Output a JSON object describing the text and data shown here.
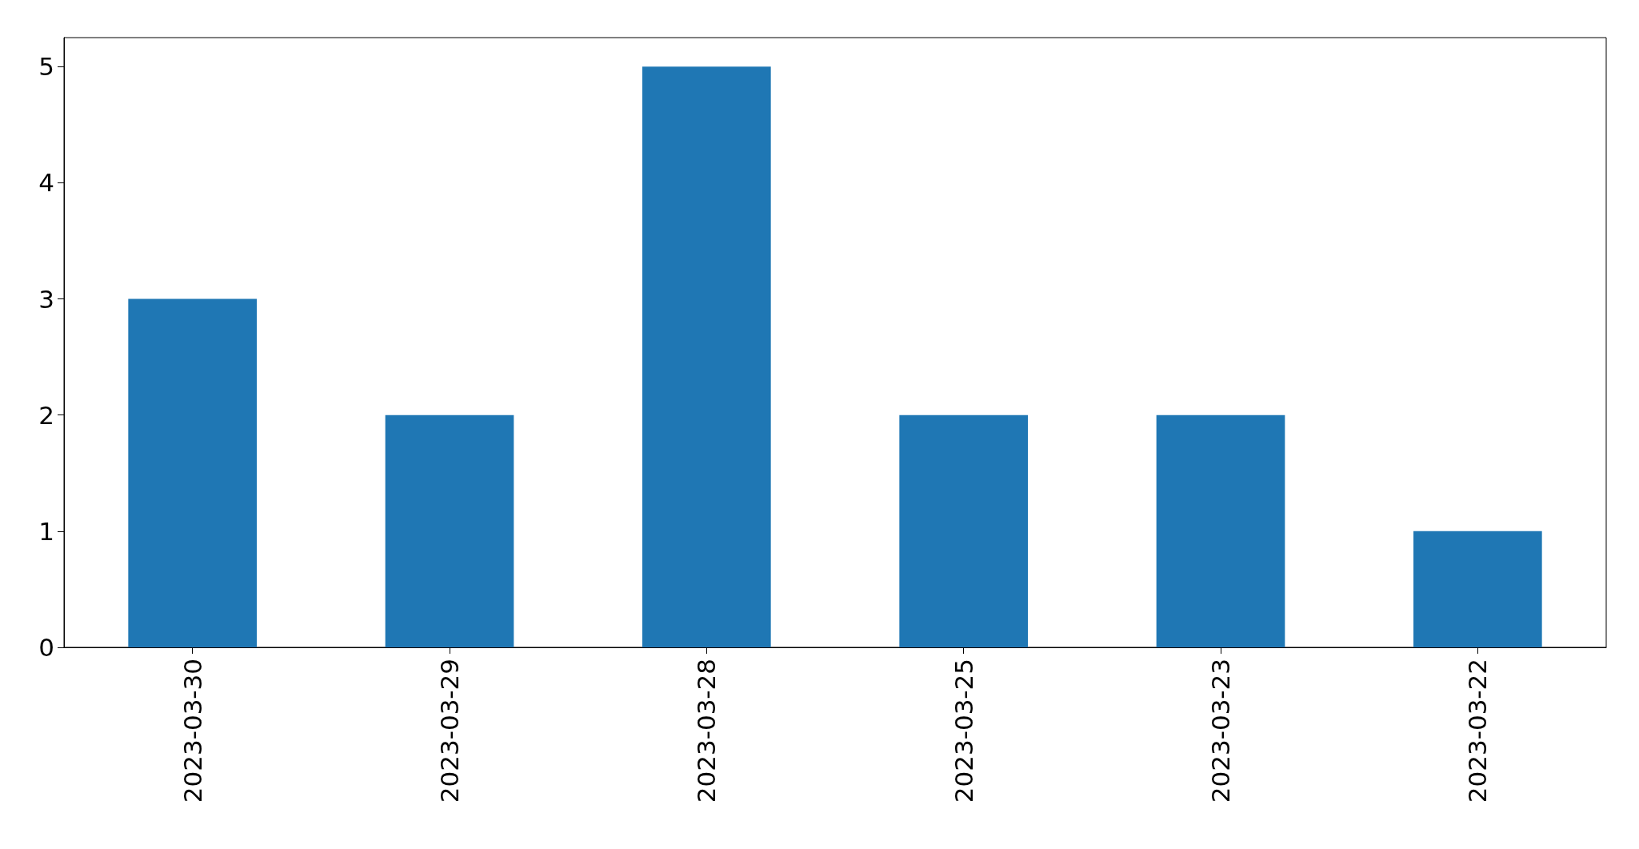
{
  "chart_data": {
    "type": "bar",
    "categories": [
      "2023-03-30",
      "2023-03-29",
      "2023-03-28",
      "2023-03-25",
      "2023-03-23",
      "2023-03-22"
    ],
    "values": [
      3,
      2,
      5,
      2,
      2,
      1
    ],
    "color": "#1f77b4",
    "ylim": [
      0,
      5.25
    ],
    "yticks": [
      0,
      1,
      2,
      3,
      4,
      5
    ]
  }
}
